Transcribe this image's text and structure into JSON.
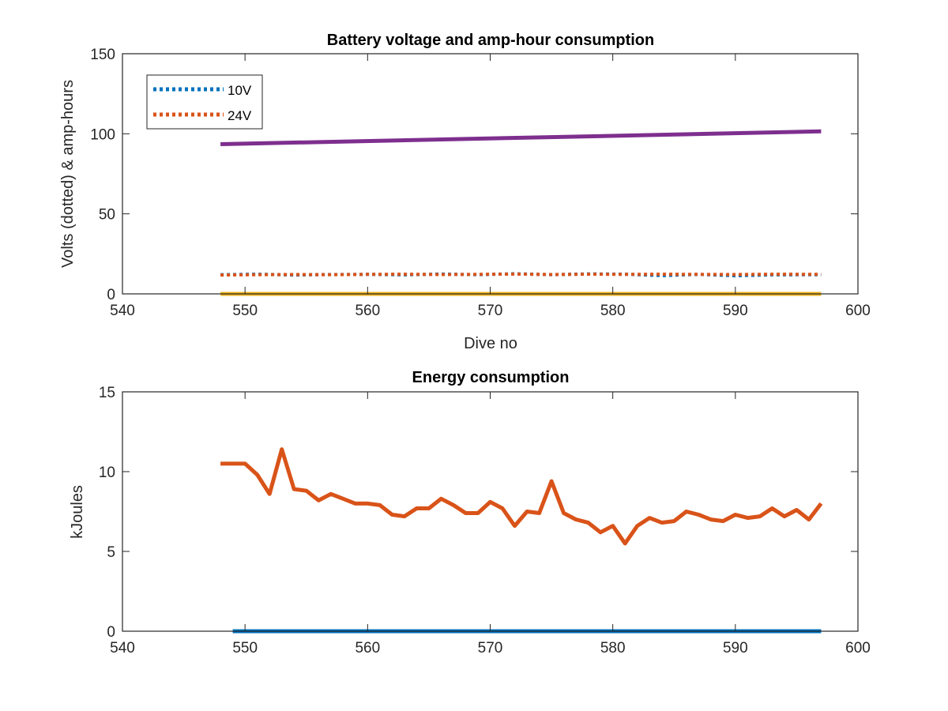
{
  "chart_data": [
    {
      "type": "line",
      "title": "Battery voltage and amp-hour consumption",
      "xlabel": "Dive no",
      "ylabel": "Volts (dotted) & amp-hours",
      "xlim": [
        540,
        600
      ],
      "ylim": [
        0,
        150
      ],
      "xticks": [
        540,
        550,
        560,
        570,
        580,
        590,
        600
      ],
      "yticks": [
        0,
        50,
        100,
        150
      ],
      "grid": false,
      "legend": {
        "placement": "top-left",
        "entries": [
          {
            "label": "10V",
            "color": "#0072BD",
            "style": "dotted"
          },
          {
            "label": "24V",
            "color": "#D95319",
            "style": "dotted"
          }
        ]
      },
      "series": [
        {
          "name": "10V",
          "color": "#0072BD",
          "style": "dotted",
          "x": [
            548,
            551,
            554,
            557,
            560,
            563,
            566,
            569,
            572,
            575,
            578,
            581,
            584,
            587,
            590,
            593,
            597
          ],
          "y": [
            12,
            12.3,
            11.8,
            12.1,
            12.2,
            11.9,
            12.4,
            12.0,
            12.6,
            12.0,
            12.5,
            12.3,
            11.4,
            12.2,
            11.3,
            11.9,
            12.0
          ]
        },
        {
          "name": "24V",
          "color": "#D95319",
          "style": "dotted",
          "x": [
            548,
            551,
            554,
            557,
            560,
            563,
            566,
            569,
            572,
            575,
            578,
            581,
            584,
            587,
            590,
            593,
            597
          ],
          "y": [
            11.8,
            12.0,
            12.1,
            12.0,
            12.2,
            12.3,
            12.1,
            12.2,
            12.4,
            12.1,
            12.3,
            12.2,
            12.3,
            12.2,
            12.1,
            12.3,
            12.2
          ]
        },
        {
          "color": "#EDB120",
          "style": "solid",
          "x": [
            548,
            597
          ],
          "y": [
            0,
            0
          ]
        },
        {
          "color": "#7E2F8E",
          "style": "solid",
          "x": [
            548,
            597
          ],
          "y": [
            93.5,
            101.5
          ]
        }
      ]
    },
    {
      "type": "line",
      "title": "Energy consumption",
      "xlabel": "",
      "ylabel": "kJoules",
      "xlim": [
        540,
        600
      ],
      "ylim": [
        0,
        15
      ],
      "xticks": [
        540,
        550,
        560,
        570,
        580,
        590,
        600
      ],
      "yticks": [
        0,
        5,
        10,
        15
      ],
      "grid": false,
      "series": [
        {
          "color": "#0072BD",
          "style": "solid",
          "x": [
            549,
            597
          ],
          "y": [
            0,
            0
          ]
        },
        {
          "color": "#D95319",
          "style": "solid",
          "x": [
            548,
            549,
            550,
            551,
            552,
            553,
            554,
            555,
            556,
            557,
            558,
            559,
            560,
            561,
            562,
            563,
            564,
            565,
            566,
            567,
            568,
            569,
            570,
            571,
            572,
            573,
            574,
            575,
            576,
            577,
            578,
            579,
            580,
            581,
            582,
            583,
            584,
            585,
            586,
            587,
            588,
            589,
            590,
            591,
            592,
            593,
            594,
            595,
            596,
            597
          ],
          "y": [
            10.5,
            10.5,
            10.5,
            9.8,
            8.6,
            11.4,
            8.9,
            8.8,
            8.2,
            8.6,
            8.3,
            8.0,
            8.0,
            7.9,
            7.3,
            7.2,
            7.7,
            7.7,
            8.3,
            7.9,
            7.4,
            7.4,
            8.1,
            7.7,
            6.6,
            7.5,
            7.4,
            9.4,
            7.4,
            7.0,
            6.8,
            6.2,
            6.6,
            5.5,
            6.6,
            7.1,
            6.8,
            6.9,
            7.5,
            7.3,
            7.0,
            6.9,
            7.3,
            7.1,
            7.2,
            7.7,
            7.2,
            7.6,
            7.0,
            8.0
          ]
        }
      ]
    }
  ]
}
